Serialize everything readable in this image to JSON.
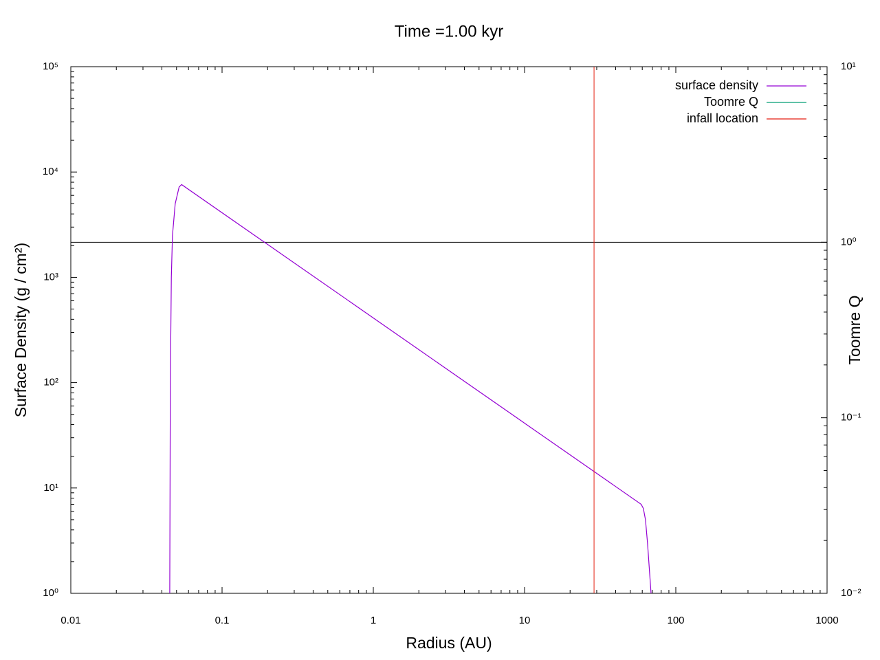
{
  "chart_data": {
    "type": "line",
    "title": "Time =1.00 kyr",
    "xlabel": "Radius (AU)",
    "ylabel": "Surface Density (g / cm²)",
    "y2label": "Toomre Q",
    "xscale": "log",
    "yscale": "log",
    "y2scale": "log",
    "xlim": [
      0.01,
      1000
    ],
    "ylim": [
      1,
      100000
    ],
    "y2lim": [
      0.01,
      10
    ],
    "xticks": [
      0.01,
      0.1,
      1,
      10,
      100,
      1000
    ],
    "yticks": [
      {
        "value": 1,
        "label": "10⁰"
      },
      {
        "value": 10,
        "label": "10¹"
      },
      {
        "value": 100,
        "label": "10²"
      },
      {
        "value": 1000,
        "label": "10³"
      },
      {
        "value": 10000,
        "label": "10⁴"
      },
      {
        "value": 100000,
        "label": "10⁵"
      }
    ],
    "y2ticks": [
      {
        "value": 0.01,
        "label": "10⁻²"
      },
      {
        "value": 0.1,
        "label": "10⁻¹"
      },
      {
        "value": 1,
        "label": "10⁰"
      },
      {
        "value": 10,
        "label": "10¹"
      }
    ],
    "legend": "top-right",
    "series": [
      {
        "name": "surface density",
        "color": "#9400d3",
        "x": [
          0.0451,
          0.0455,
          0.0462,
          0.047,
          0.049,
          0.052,
          0.054,
          59,
          61,
          63,
          65,
          68.6
        ],
        "values": [
          1,
          100,
          1000,
          2500,
          5000,
          7200,
          7600,
          7.0,
          6.4,
          5,
          3,
          1
        ]
      },
      {
        "name": "Toomre Q",
        "color": "#009e73",
        "axis": "y2",
        "x": [],
        "values": []
      },
      {
        "name": "infall location",
        "color": "#e51e10",
        "vline": 28.8
      }
    ],
    "reference_lines": [
      {
        "axis": "y2",
        "value": 1,
        "color": "#000000"
      }
    ]
  }
}
